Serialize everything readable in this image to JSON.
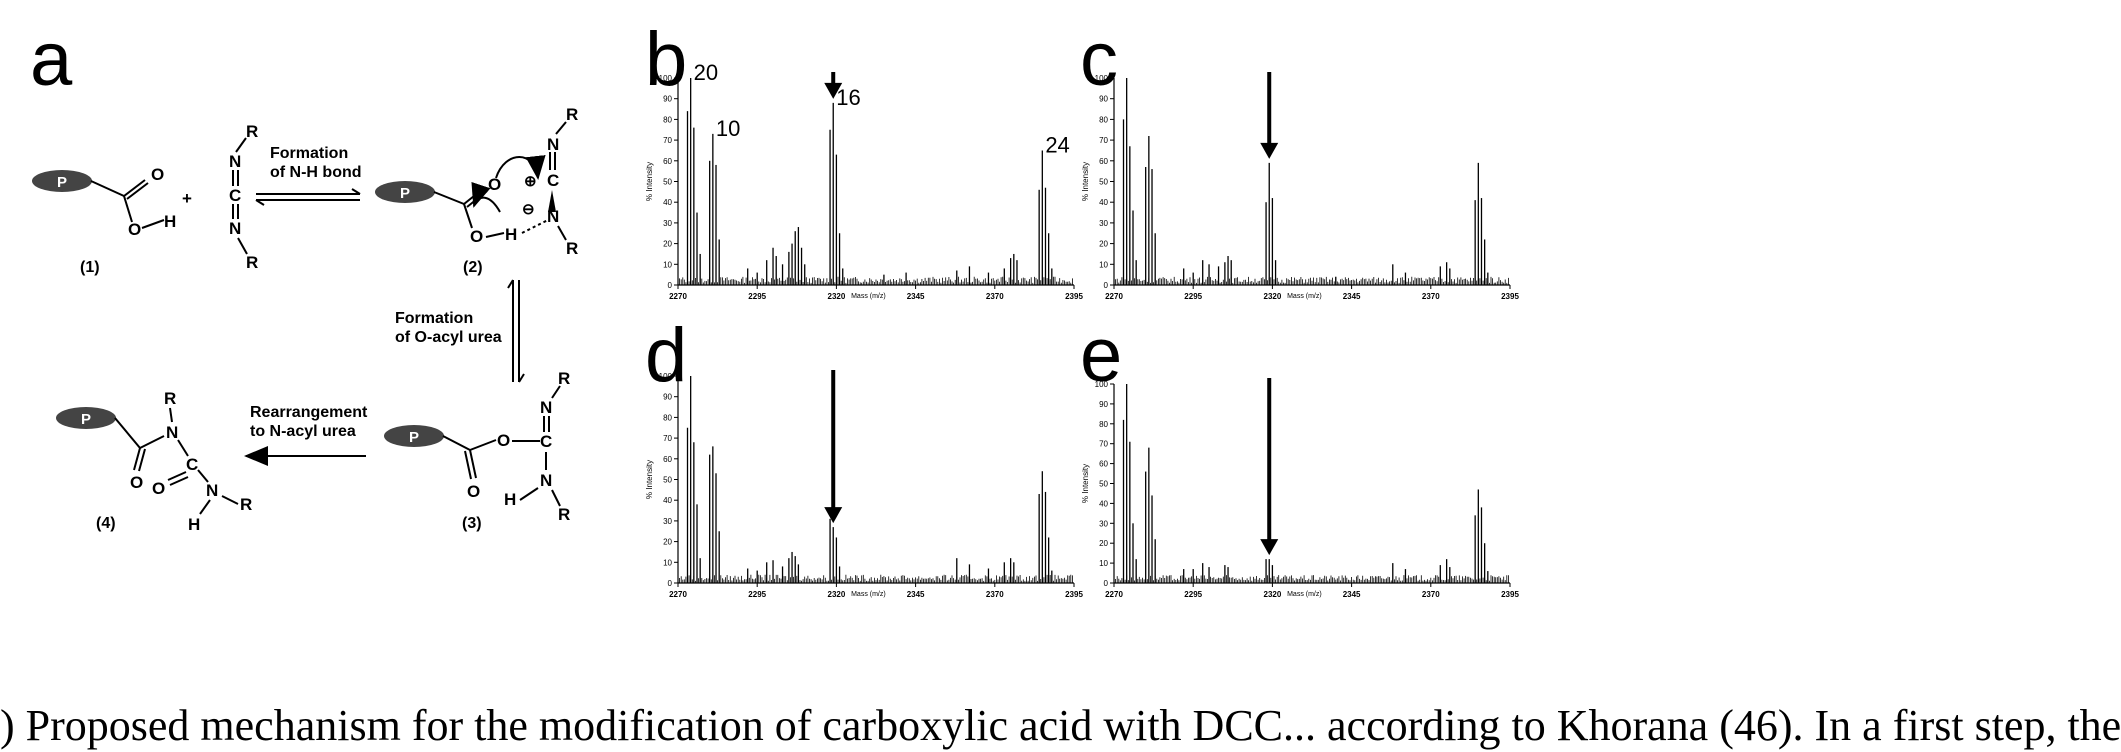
{
  "panels": {
    "a": "a",
    "b": "b",
    "c": "c",
    "d": "d",
    "e": "e"
  },
  "scheme": {
    "P": "P",
    "O": "O",
    "H": "H",
    "N": "N",
    "C": "C",
    "R": "R",
    "plus": "+",
    "charge_pos": "⊕",
    "charge_neg": "⊖",
    "compound_1": "(1)",
    "compound_2": "(2)",
    "compound_3": "(3)",
    "compound_4": "(4)",
    "step1_line1": "Formation",
    "step1_line2": "of N-H bond",
    "step2_line1": "Formation",
    "step2_line2": "of O-acyl urea",
    "step3_line1": "Rearrangement",
    "step3_line2": "to N-acyl urea"
  },
  "axis": {
    "ylabel": "% Intensity",
    "xlabel": "Mass (m/z)",
    "yticks": [
      0,
      10,
      20,
      30,
      40,
      50,
      60,
      70,
      80,
      90,
      100
    ],
    "xticks": [
      2270,
      2295,
      2320,
      2345,
      2370,
      2395
    ]
  },
  "chart_data": [
    {
      "panel": "b",
      "type": "line",
      "xlabel": "Mass (m/z)",
      "ylabel": "% Intensity",
      "xlim": [
        2270,
        2395
      ],
      "ylim": [
        0,
        100
      ],
      "arrow_x": 2319,
      "peaks": [
        [
          2273,
          84
        ],
        [
          2274,
          100
        ],
        [
          2275,
          76
        ],
        [
          2276,
          35
        ],
        [
          2277,
          15
        ],
        [
          2280,
          60
        ],
        [
          2281,
          73
        ],
        [
          2282,
          58
        ],
        [
          2283,
          22
        ],
        [
          2292,
          8
        ],
        [
          2295,
          6
        ],
        [
          2298,
          12
        ],
        [
          2300,
          18
        ],
        [
          2301,
          14
        ],
        [
          2303,
          10
        ],
        [
          2305,
          16
        ],
        [
          2306,
          20
        ],
        [
          2307,
          26
        ],
        [
          2308,
          28
        ],
        [
          2309,
          18
        ],
        [
          2310,
          10
        ],
        [
          2318,
          75
        ],
        [
          2319,
          88
        ],
        [
          2320,
          63
        ],
        [
          2321,
          25
        ],
        [
          2322,
          8
        ],
        [
          2335,
          5
        ],
        [
          2342,
          6
        ],
        [
          2358,
          7
        ],
        [
          2362,
          9
        ],
        [
          2368,
          6
        ],
        [
          2373,
          8
        ],
        [
          2375,
          13
        ],
        [
          2376,
          15
        ],
        [
          2377,
          12
        ],
        [
          2384,
          46
        ],
        [
          2385,
          65
        ],
        [
          2386,
          47
        ],
        [
          2387,
          25
        ],
        [
          2388,
          8
        ]
      ],
      "annotations": [
        {
          "label": "20",
          "x": 2274
        },
        {
          "label": "10",
          "x": 2281
        },
        {
          "label": "16",
          "x": 2319
        },
        {
          "label": "24",
          "x": 2385
        }
      ]
    },
    {
      "panel": "c",
      "type": "line",
      "xlabel": "Mass (m/z)",
      "ylabel": "% Intensity",
      "xlim": [
        2270,
        2395
      ],
      "ylim": [
        0,
        100
      ],
      "arrow_x": 2319,
      "peaks": [
        [
          2273,
          80
        ],
        [
          2274,
          100
        ],
        [
          2275,
          67
        ],
        [
          2276,
          36
        ],
        [
          2277,
          12
        ],
        [
          2280,
          57
        ],
        [
          2281,
          72
        ],
        [
          2282,
          56
        ],
        [
          2283,
          25
        ],
        [
          2292,
          8
        ],
        [
          2295,
          6
        ],
        [
          2298,
          12
        ],
        [
          2300,
          10
        ],
        [
          2303,
          9
        ],
        [
          2305,
          11
        ],
        [
          2306,
          14
        ],
        [
          2307,
          12
        ],
        [
          2318,
          40
        ],
        [
          2319,
          59
        ],
        [
          2320,
          42
        ],
        [
          2321,
          12
        ],
        [
          2340,
          4
        ],
        [
          2358,
          10
        ],
        [
          2362,
          6
        ],
        [
          2373,
          9
        ],
        [
          2375,
          11
        ],
        [
          2376,
          8
        ],
        [
          2384,
          41
        ],
        [
          2385,
          59
        ],
        [
          2386,
          42
        ],
        [
          2387,
          22
        ],
        [
          2388,
          6
        ]
      ],
      "annotations": []
    },
    {
      "panel": "d",
      "type": "line",
      "xlabel": "Mass (m/z)",
      "ylabel": "% Intensity",
      "xlim": [
        2270,
        2395
      ],
      "ylim": [
        0,
        100
      ],
      "arrow_x": 2319,
      "peaks": [
        [
          2273,
          75
        ],
        [
          2274,
          100
        ],
        [
          2275,
          68
        ],
        [
          2276,
          38
        ],
        [
          2277,
          12
        ],
        [
          2280,
          62
        ],
        [
          2281,
          66
        ],
        [
          2282,
          53
        ],
        [
          2283,
          25
        ],
        [
          2292,
          7
        ],
        [
          2295,
          6
        ],
        [
          2298,
          10
        ],
        [
          2300,
          11
        ],
        [
          2303,
          8
        ],
        [
          2305,
          12
        ],
        [
          2306,
          15
        ],
        [
          2307,
          13
        ],
        [
          2308,
          9
        ],
        [
          2318,
          31
        ],
        [
          2319,
          27
        ],
        [
          2320,
          22
        ],
        [
          2321,
          8
        ],
        [
          2358,
          12
        ],
        [
          2362,
          9
        ],
        [
          2368,
          7
        ],
        [
          2373,
          10
        ],
        [
          2375,
          12
        ],
        [
          2376,
          10
        ],
        [
          2384,
          43
        ],
        [
          2385,
          54
        ],
        [
          2386,
          44
        ],
        [
          2387,
          22
        ],
        [
          2388,
          6
        ]
      ],
      "annotations": []
    },
    {
      "panel": "e",
      "type": "line",
      "xlabel": "Mass (m/z)",
      "ylabel": "% Intensity",
      "xlim": [
        2270,
        2395
      ],
      "ylim": [
        0,
        100
      ],
      "arrow_x": 2319,
      "peaks": [
        [
          2273,
          82
        ],
        [
          2274,
          100
        ],
        [
          2275,
          71
        ],
        [
          2276,
          30
        ],
        [
          2277,
          12
        ],
        [
          2280,
          56
        ],
        [
          2281,
          68
        ],
        [
          2282,
          44
        ],
        [
          2283,
          22
        ],
        [
          2292,
          7
        ],
        [
          2295,
          7
        ],
        [
          2298,
          10
        ],
        [
          2300,
          8
        ],
        [
          2305,
          9
        ],
        [
          2306,
          8
        ],
        [
          2318,
          12
        ],
        [
          2319,
          12
        ],
        [
          2320,
          9
        ],
        [
          2358,
          10
        ],
        [
          2362,
          7
        ],
        [
          2373,
          9
        ],
        [
          2375,
          12
        ],
        [
          2376,
          8
        ],
        [
          2384,
          34
        ],
        [
          2385,
          47
        ],
        [
          2386,
          38
        ],
        [
          2387,
          20
        ],
        [
          2388,
          6
        ]
      ],
      "annotations": []
    }
  ],
  "caption": ") Proposed mechanism for the modification of carboxylic acid with DCC... according to Khorana (46). In a first step, the"
}
